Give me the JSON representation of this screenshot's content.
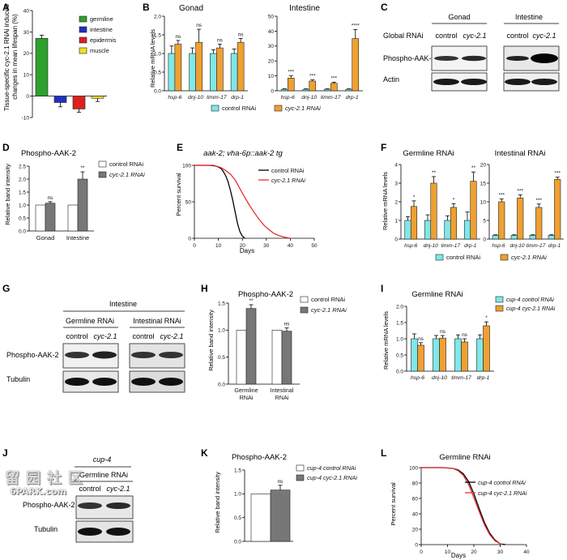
{
  "panel_letters": [
    "A",
    "B",
    "C",
    "D",
    "E",
    "F",
    "G",
    "H",
    "I",
    "J",
    "K",
    "L"
  ],
  "colors": {
    "control": "#7fe8e8",
    "treated": "#f0a030",
    "germline": "#2ea02e",
    "intestine": "#2030c0",
    "epidermis": "#e02020",
    "muscle": "#f0e020",
    "curve_control": "#000000",
    "curve_treated": "#e83030",
    "bar_white": "#ffffff",
    "bar_gray": "#777777"
  },
  "panels": {
    "A": {
      "ylabel_l1": "Tissue-specific cyc-2.1 RNAi induced",
      "ylabel_l2": "changes in mean lifespan (%)",
      "legend": [
        "germline",
        "intestine",
        "epidermis",
        "muscle"
      ]
    },
    "B": {
      "sub": [
        "Gonad",
        "Intestine"
      ],
      "ylabel": "Relative mRNA levels",
      "legend": [
        "control RNAi",
        "cyc-2.1 RNAi"
      ],
      "stars": [
        [
          "ns",
          "ns",
          "ns",
          "ns"
        ],
        [
          "***",
          "***",
          "***",
          "****"
        ]
      ]
    },
    "C": {
      "headers": [
        "Gonad",
        "Intestine"
      ],
      "row_label": "Global RNAi",
      "lanes": [
        "control",
        "cyc-2.1",
        "control",
        "cyc-2.1"
      ],
      "bands": [
        "Phospho-AAK-2",
        "Actin"
      ]
    },
    "D": {
      "title": "Phospho-AAK-2",
      "ylabel": "Relative band intensity",
      "legend": [
        "control RNAi",
        "cyc-2.1 RNAi"
      ],
      "stars": [
        "ns",
        "**"
      ]
    },
    "E": {
      "title": "aak-2; vha-6p::aak-2 tg",
      "ylabel": "Percent survival",
      "xlabel": "Days",
      "legend": [
        "control RNAi",
        "cyc-2.1 RNAi"
      ]
    },
    "F": {
      "sub": [
        "Germline RNAi",
        "Intestinal RNAi"
      ],
      "ylabel": "Relative mRNA levels",
      "legend": [
        "control RNAi",
        "cyc-2.1 RNAi"
      ],
      "stars": [
        [
          "*",
          "**",
          "*",
          "**"
        ],
        [
          "***",
          "***",
          "***",
          "***"
        ]
      ]
    },
    "G": {
      "header": "Intestine",
      "groups": [
        "Germline RNAi",
        "Intestinal RNAi"
      ],
      "lanes": [
        "control",
        "cyc-2.1",
        "control",
        "cyc-2.1"
      ],
      "bands": [
        "Phospho-AAK-2",
        "Tubulin"
      ]
    },
    "H": {
      "title": "Phospho-AAK-2",
      "ylabel": "Relative band intensity",
      "legend": [
        "control RNAi",
        "cyc-2.1 RNAi"
      ],
      "stars": [
        "**",
        "ns"
      ]
    },
    "I": {
      "title": "Germline RNAi",
      "ylabel": "Relative mRNA levels",
      "legend": [
        "cup-4 control RNAi",
        "cup-4 cyc-2.1 RNAi"
      ],
      "stars": [
        "ns",
        "ns",
        "ns",
        "*"
      ]
    },
    "J": {
      "strain": "cup-4",
      "group": "Germline RNAi",
      "lanes": [
        "control",
        "cyc-2.1"
      ],
      "bands": [
        "Phospho-AAK-2",
        "Tubulin"
      ]
    },
    "K": {
      "title": "Phospho-AAK-2",
      "ylabel": "Relative band intensity",
      "legend": [
        "cup-4 control RNAi",
        "cup-4 cyc-2.1 RNAi"
      ],
      "stars": [
        "ns"
      ]
    },
    "L": {
      "title": "Germline RNAi",
      "ylabel": "Percent survival",
      "xlabel": "Days",
      "legend": [
        "cup-4 control RNAi",
        "cup-4 cyc-2.1 RNAi"
      ]
    }
  },
  "watermark": {
    "chars": [
      "留",
      "园",
      "社",
      "区"
    ],
    "url": "6PARK.com"
  },
  "chart_data": [
    {
      "panel": "A",
      "type": "bar",
      "categories": [
        "germline",
        "intestine",
        "epidermis",
        "muscle"
      ],
      "values": [
        27,
        -3,
        -6,
        -1
      ],
      "errors": [
        1.5,
        2,
        1.5,
        1.5
      ],
      "ylim": [
        -10,
        40
      ],
      "yticks": [
        -10,
        0,
        10,
        20,
        30,
        40
      ]
    },
    {
      "panel": "B-Gonad",
      "type": "bar",
      "categories": [
        "hsp-6",
        "dnj-10",
        "timm-17",
        "drp-1"
      ],
      "series": [
        {
          "name": "control RNAi",
          "values": [
            1.0,
            1.0,
            1.0,
            1.0
          ],
          "errors": [
            0.2,
            0.15,
            0.1,
            0.12
          ]
        },
        {
          "name": "cyc-2.1 RNAi",
          "values": [
            1.25,
            1.3,
            1.15,
            1.3
          ],
          "errors": [
            0.1,
            0.35,
            0.1,
            0.1
          ]
        }
      ],
      "ylim": [
        0,
        2.0
      ],
      "yticks": [
        0.0,
        0.5,
        1.0,
        1.5,
        2.0
      ]
    },
    {
      "panel": "B-Intestine",
      "type": "bar",
      "categories": [
        "hsp-6",
        "dnj-10",
        "timm-17",
        "drp-1"
      ],
      "series": [
        {
          "name": "control RNAi",
          "values": [
            1,
            1,
            1,
            1
          ],
          "errors": [
            0.3,
            0.3,
            0.3,
            0.3
          ]
        },
        {
          "name": "cyc-2.1 RNAi",
          "values": [
            8.5,
            6.5,
            5,
            35
          ],
          "errors": [
            1.5,
            0.8,
            0.8,
            6
          ]
        }
      ],
      "ylim": [
        0,
        50
      ],
      "yticks": [
        0,
        10,
        20,
        30,
        40,
        50
      ]
    },
    {
      "panel": "D",
      "type": "bar",
      "categories": [
        "Gonad",
        "Intestine"
      ],
      "series": [
        {
          "name": "control RNAi",
          "values": [
            1.0,
            1.0
          ],
          "errors": [
            0.0,
            0.0
          ]
        },
        {
          "name": "cyc-2.1 RNAi",
          "values": [
            1.07,
            2.0
          ],
          "errors": [
            0.06,
            0.28
          ]
        }
      ],
      "ylim": [
        0,
        2.5
      ],
      "yticks": [
        0.0,
        0.5,
        1.0,
        1.5,
        2.0,
        2.5
      ]
    },
    {
      "panel": "E",
      "type": "line",
      "series": [
        {
          "name": "control RNAi",
          "x": [
            0,
            6,
            9,
            11,
            12,
            13,
            14,
            15,
            16,
            17,
            18,
            19,
            20,
            21
          ],
          "y": [
            100,
            100,
            99,
            96,
            92,
            86,
            78,
            66,
            52,
            36,
            20,
            9,
            3,
            0
          ]
        },
        {
          "name": "cyc-2.1 RNAi",
          "x": [
            0,
            8,
            11,
            13,
            15,
            17,
            19,
            21,
            23,
            25,
            27,
            29,
            31,
            33,
            35,
            37,
            40
          ],
          "y": [
            100,
            100,
            97,
            93,
            88,
            80,
            68,
            56,
            45,
            35,
            26,
            18,
            12,
            7,
            4,
            2,
            0
          ]
        }
      ],
      "xlim": [
        0,
        50
      ],
      "ylim": [
        0,
        100
      ],
      "xticks": [
        0,
        10,
        20,
        30,
        40,
        50
      ],
      "yticks": [
        0,
        50,
        100
      ]
    },
    {
      "panel": "F-Germline",
      "type": "bar",
      "categories": [
        "hsp-6",
        "dnj-10",
        "timm-17",
        "drp-1"
      ],
      "series": [
        {
          "name": "control RNAi",
          "values": [
            1.0,
            1.0,
            1.0,
            1.0
          ],
          "errors": [
            0.2,
            0.3,
            0.25,
            0.45
          ]
        },
        {
          "name": "cyc-2.1 RNAi",
          "values": [
            1.75,
            3.0,
            1.7,
            3.1
          ],
          "errors": [
            0.3,
            0.35,
            0.2,
            0.5
          ]
        }
      ],
      "ylim": [
        0,
        4
      ],
      "yticks": [
        0,
        1,
        2,
        3,
        4
      ]
    },
    {
      "panel": "F-Intestinal",
      "type": "bar",
      "categories": [
        "hsp-6",
        "dnj-10",
        "timm-17",
        "drp-1"
      ],
      "series": [
        {
          "name": "control RNAi",
          "values": [
            1,
            1,
            1,
            1
          ],
          "errors": [
            0.15,
            0.15,
            0.15,
            0.15
          ]
        },
        {
          "name": "cyc-2.1 RNAi",
          "values": [
            10,
            11,
            8.5,
            16
          ],
          "errors": [
            0.8,
            0.9,
            0.9,
            0.6
          ]
        }
      ],
      "ylim": [
        0,
        20
      ],
      "yticks": [
        0,
        5,
        10,
        15,
        20
      ]
    },
    {
      "panel": "H",
      "type": "bar",
      "categories": [
        "Germline RNAi",
        "Intestinal RNAi"
      ],
      "series": [
        {
          "name": "control RNAi",
          "values": [
            1.0,
            1.0
          ],
          "errors": [
            0,
            0
          ]
        },
        {
          "name": "cyc-2.1 RNAi",
          "values": [
            1.4,
            0.98
          ],
          "errors": [
            0.07,
            0.06
          ]
        }
      ],
      "ylim": [
        0,
        1.5
      ],
      "yticks": [
        0.0,
        0.5,
        1.0,
        1.5
      ]
    },
    {
      "panel": "I",
      "type": "bar",
      "categories": [
        "hsp-6",
        "dnj-10",
        "timm-17",
        "drp-1"
      ],
      "series": [
        {
          "name": "cup-4 control RNAi",
          "values": [
            1.0,
            1.0,
            1.0,
            1.0
          ],
          "errors": [
            0.15,
            0.1,
            0.12,
            0.12
          ]
        },
        {
          "name": "cup-4 cyc-2.1 RNAi",
          "values": [
            0.8,
            1.02,
            0.9,
            1.4
          ],
          "errors": [
            0.08,
            0.08,
            0.1,
            0.12
          ]
        }
      ],
      "ylim": [
        0,
        2.0
      ],
      "yticks": [
        0.0,
        0.5,
        1.0,
        1.5,
        2.0
      ]
    },
    {
      "panel": "K",
      "type": "bar",
      "categories": [
        ""
      ],
      "series": [
        {
          "name": "cup-4 control RNAi",
          "values": [
            1.0
          ],
          "errors": [
            0
          ]
        },
        {
          "name": "cup-4 cyc-2.1 RNAi",
          "values": [
            1.08
          ],
          "errors": [
            0.1
          ]
        }
      ],
      "ylim": [
        0,
        1.5
      ],
      "yticks": [
        0.0,
        0.5,
        1.0,
        1.5
      ]
    },
    {
      "panel": "L",
      "type": "line",
      "series": [
        {
          "name": "cup-4 control RNAi",
          "x": [
            0,
            8,
            12,
            14,
            16,
            18,
            20,
            22,
            24,
            26,
            28,
            30,
            32
          ],
          "y": [
            100,
            100,
            99,
            97,
            92,
            82,
            66,
            47,
            29,
            15,
            6,
            1,
            0
          ]
        },
        {
          "name": "cup-4 cyc-2.1 RNAi",
          "x": [
            0,
            8,
            12,
            14,
            16,
            18,
            20,
            22,
            24,
            26,
            28,
            30,
            31
          ],
          "y": [
            100,
            100,
            99,
            96,
            90,
            78,
            61,
            43,
            26,
            13,
            5,
            1,
            0
          ]
        }
      ],
      "xlim": [
        0,
        40
      ],
      "ylim": [
        0,
        100
      ],
      "xticks": [
        0,
        10,
        20,
        30,
        40
      ],
      "yticks": [
        0,
        20,
        40,
        60,
        80,
        100
      ]
    }
  ]
}
